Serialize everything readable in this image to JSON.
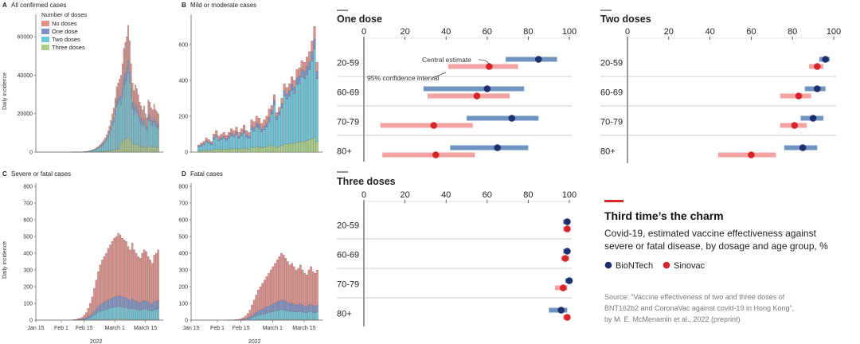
{
  "colors": {
    "no_doses": "#e48f8a",
    "one_dose": "#7b8fc4",
    "two_doses": "#6dc6dc",
    "three_doses": "#a9cf84",
    "biontech_dot": "#1f2f6e",
    "biontech_bar": "#6f94c2",
    "sinovac_dot": "#d8252a",
    "sinovac_bar": "#f4a3a3",
    "accent": "#d8252a"
  },
  "legend_block": {
    "title": "Number of doses",
    "items": [
      "No doses",
      "One dose",
      "Two doses",
      "Three doses"
    ]
  },
  "chart_data": [
    {
      "type": "bar",
      "stacked": true,
      "panel_letter": "A",
      "title": "All confirmed cases",
      "ylabel": "Daily incidence",
      "ylim": [
        0,
        70000
      ],
      "yticks": [
        "0",
        "20000",
        "40000",
        "60000"
      ],
      "yticks_values": [
        0,
        20000,
        40000,
        60000
      ],
      "xticks": [],
      "series_names": [
        "No doses",
        "One dose",
        "Two doses",
        "Three doses"
      ],
      "totals": [
        30,
        40,
        50,
        60,
        80,
        100,
        120,
        150,
        200,
        260,
        350,
        480,
        650,
        850,
        1100,
        1400,
        1800,
        2300,
        2900,
        3500,
        4300,
        5200,
        6300,
        7500,
        9000,
        11000,
        13500,
        16500,
        20000,
        23000,
        28000,
        34000,
        36000,
        38000,
        40000,
        46000,
        54000,
        57000,
        60000,
        66000,
        58000,
        46000,
        36000,
        32000,
        35000,
        33000,
        30000,
        26000,
        24000,
        22000,
        24000,
        20000,
        18000,
        27000,
        26000,
        23000,
        22000,
        25000,
        22000,
        21000,
        20000
      ]
    },
    {
      "type": "bar",
      "stacked": true,
      "panel_letter": "B",
      "title": "Mild or moderate cases",
      "ylabel": "",
      "ylim": [
        0,
        750
      ],
      "yticks": [
        "0",
        "200",
        "400",
        "600"
      ],
      "yticks_values": [
        0,
        200,
        400,
        600
      ],
      "xticks": [],
      "totals": [
        40,
        50,
        60,
        80,
        70,
        60,
        100,
        120,
        90,
        100,
        110,
        95,
        110,
        130,
        120,
        140,
        110,
        130,
        150,
        120,
        110,
        180,
        170,
        200,
        190,
        160,
        180,
        200,
        240,
        260,
        320,
        220,
        250,
        300,
        380,
        360,
        380,
        420,
        400,
        460,
        470,
        510,
        500,
        530,
        560,
        620,
        700,
        500
      ]
    },
    {
      "type": "bar",
      "stacked": true,
      "panel_letter": "C",
      "title": "Severe or fatal cases",
      "ylabel": "Daily incidence",
      "ylim": [
        0,
        800
      ],
      "yticks": [
        "0",
        "100",
        "200",
        "300",
        "400",
        "500",
        "600",
        "700",
        "800"
      ],
      "yticks_values": [
        0,
        100,
        200,
        300,
        400,
        500,
        600,
        700,
        800
      ],
      "xticks": [
        "Jan 15",
        "Feb 1",
        "Feb 15",
        "March 1",
        "March 15"
      ],
      "xlabel": "2022",
      "totals": [
        2,
        3,
        5,
        8,
        12,
        18,
        30,
        45,
        70,
        100,
        140,
        190,
        240,
        290,
        330,
        360,
        380,
        400,
        430,
        450,
        470,
        490,
        500,
        520,
        510,
        490,
        480,
        470,
        440,
        420,
        460,
        420,
        400,
        380,
        370,
        400,
        420,
        410,
        380,
        360,
        340,
        390,
        400,
        420
      ]
    },
    {
      "type": "bar",
      "stacked": true,
      "panel_letter": "D",
      "title": "Fatal cases",
      "ylabel": "",
      "ylim": [
        0,
        800
      ],
      "yticks": [
        "0",
        "100",
        "200",
        "300",
        "400",
        "500",
        "600",
        "700",
        "800"
      ],
      "yticks_values": [
        0,
        100,
        200,
        300,
        400,
        500,
        600,
        700,
        800
      ],
      "xticks": [
        "Jan 15",
        "Feb 1",
        "Feb 15",
        "March 1",
        "March 15"
      ],
      "xlabel": "2022",
      "totals": [
        1,
        1,
        2,
        3,
        4,
        6,
        10,
        15,
        25,
        40,
        60,
        90,
        120,
        150,
        180,
        200,
        220,
        240,
        260,
        280,
        300,
        320,
        340,
        360,
        380,
        400,
        390,
        370,
        350,
        330,
        340,
        320,
        300,
        310,
        330,
        300,
        280,
        270,
        300,
        320,
        290,
        280,
        300
      ]
    },
    {
      "type": "dot-interval",
      "title": "One dose",
      "xlim": [
        0,
        100
      ],
      "xticks": [
        "0",
        "20",
        "40",
        "60",
        "80",
        "100"
      ],
      "categories": [
        "20-59",
        "60-69",
        "70-79",
        "80+"
      ],
      "series": [
        {
          "name": "BioNTech",
          "estimates": [
            85,
            60,
            72,
            65
          ],
          "lower": [
            69,
            29,
            50,
            42
          ],
          "upper": [
            94,
            78,
            85,
            80
          ]
        },
        {
          "name": "Sinovac",
          "estimates": [
            61,
            55,
            34,
            35
          ],
          "lower": [
            41,
            31,
            8,
            9
          ],
          "upper": [
            75,
            71,
            53,
            54
          ]
        }
      ],
      "annotations": [
        "Central estimate",
        "95% confidence interval"
      ]
    },
    {
      "type": "dot-interval",
      "title": "Two doses",
      "xlim": [
        0,
        100
      ],
      "xticks": [
        "0",
        "20",
        "40",
        "60",
        "80",
        "100"
      ],
      "categories": [
        "20-59",
        "60-69",
        "70-79",
        "80+"
      ],
      "series": [
        {
          "name": "BioNTech",
          "estimates": [
            96,
            92,
            90,
            85
          ],
          "lower": [
            93,
            86,
            84,
            76
          ],
          "upper": [
            98,
            96,
            95,
            92
          ]
        },
        {
          "name": "Sinovac",
          "estimates": [
            92,
            83,
            81,
            60
          ],
          "lower": [
            88,
            74,
            74,
            44
          ],
          "upper": [
            95,
            89,
            87,
            72
          ]
        }
      ]
    },
    {
      "type": "dot-interval",
      "title": "Three doses",
      "xlim": [
        0,
        100
      ],
      "xticks": [
        "0",
        "20",
        "40",
        "60",
        "80",
        "100"
      ],
      "categories": [
        "20-59",
        "60-69",
        "70-79",
        "80+"
      ],
      "series": [
        {
          "name": "BioNTech",
          "estimates": [
            99,
            99,
            100,
            96
          ],
          "lower": [
            97,
            97,
            98,
            90
          ],
          "upper": [
            100,
            100,
            100,
            99
          ]
        },
        {
          "name": "Sinovac",
          "estimates": [
            99,
            98,
            97,
            99
          ],
          "lower": [
            97,
            96,
            93,
            97
          ],
          "upper": [
            100,
            100,
            99,
            100
          ]
        }
      ]
    }
  ],
  "headline": {
    "title": "Third time’s the charm",
    "subtitle_line1": "Covid-19, estimated vaccine effectiveness against",
    "subtitle_line2": "severe or fatal disease, by dosage and age group, %",
    "legend_biontech": "BioNTech",
    "legend_sinovac": "Sinovac",
    "source_line1": "Source: “Vaccine effectiveness of two and three doses of",
    "source_line2": "BNT162b2 and CoronaVac against covid-19 in Hong Kong”,",
    "source_line3": "by M. E. McMenamin et al., 2022 (preprint)"
  }
}
